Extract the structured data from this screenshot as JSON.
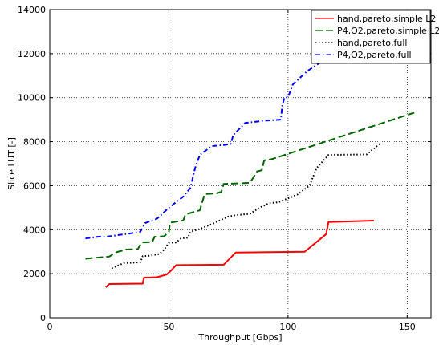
{
  "chart_data": {
    "type": "line",
    "title": "",
    "xlabel": "Throughput [Gbps]",
    "ylabel": "Slice LUT [-]",
    "xlim": [
      0,
      160
    ],
    "ylim": [
      0,
      14000
    ],
    "xticks": [
      0,
      50,
      100,
      150
    ],
    "yticks": [
      0,
      2000,
      4000,
      6000,
      8000,
      10000,
      12000,
      14000
    ],
    "grid": true,
    "legend_position": "top-right",
    "series": [
      {
        "name": "hand,pareto,simple L2",
        "color": "#ff0000",
        "style": "solid",
        "points": [
          [
            23.5,
            1380
          ],
          [
            25,
            1530
          ],
          [
            39,
            1550
          ],
          [
            39.5,
            1820
          ],
          [
            45,
            1840
          ],
          [
            49,
            1960
          ],
          [
            51,
            2150
          ],
          [
            53,
            2390
          ],
          [
            73,
            2410
          ],
          [
            78,
            2960
          ],
          [
            107,
            3000
          ],
          [
            116,
            3800
          ],
          [
            117,
            4350
          ],
          [
            136,
            4410
          ]
        ]
      },
      {
        "name": "P4,O2,pareto,simple L2",
        "color": "#006400",
        "style": "dashed",
        "points": [
          [
            15,
            2680
          ],
          [
            25,
            2780
          ],
          [
            28,
            2980
          ],
          [
            32,
            3100
          ],
          [
            37,
            3120
          ],
          [
            38.5,
            3420
          ],
          [
            43,
            3440
          ],
          [
            44,
            3680
          ],
          [
            48,
            3700
          ],
          [
            50,
            3900
          ],
          [
            50.5,
            4320
          ],
          [
            56,
            4420
          ],
          [
            57,
            4700
          ],
          [
            63,
            4880
          ],
          [
            65,
            5620
          ],
          [
            70,
            5650
          ],
          [
            72,
            5720
          ],
          [
            73,
            6080
          ],
          [
            84,
            6130
          ],
          [
            87,
            6650
          ],
          [
            89,
            6700
          ],
          [
            90,
            7150
          ],
          [
            93,
            7200
          ],
          [
            153,
            9320
          ]
        ]
      },
      {
        "name": "hand,pareto,full",
        "color": "#000000",
        "style": "dotted",
        "points": [
          [
            26,
            2250
          ],
          [
            31,
            2480
          ],
          [
            38,
            2520
          ],
          [
            39,
            2800
          ],
          [
            42,
            2820
          ],
          [
            46,
            2900
          ],
          [
            48,
            3100
          ],
          [
            50,
            3400
          ],
          [
            53,
            3420
          ],
          [
            55,
            3600
          ],
          [
            58,
            3640
          ],
          [
            59,
            3900
          ],
          [
            62,
            4000
          ],
          [
            68,
            4250
          ],
          [
            72,
            4450
          ],
          [
            75,
            4600
          ],
          [
            78,
            4660
          ],
          [
            84,
            4720
          ],
          [
            88,
            5000
          ],
          [
            92,
            5200
          ],
          [
            96,
            5250
          ],
          [
            104,
            5600
          ],
          [
            109,
            6000
          ],
          [
            112,
            6800
          ],
          [
            117,
            7400
          ],
          [
            133,
            7420
          ],
          [
            139,
            7950
          ]
        ]
      },
      {
        "name": "P4,O2,pareto,full",
        "color": "#0000ff",
        "style": "dashdot",
        "points": [
          [
            15,
            3600
          ],
          [
            20,
            3680
          ],
          [
            25,
            3700
          ],
          [
            35,
            3850
          ],
          [
            38,
            3900
          ],
          [
            40,
            4300
          ],
          [
            45,
            4500
          ],
          [
            50,
            5000
          ],
          [
            56,
            5500
          ],
          [
            59,
            5900
          ],
          [
            61,
            6800
          ],
          [
            63,
            7400
          ],
          [
            68,
            7800
          ],
          [
            73,
            7850
          ],
          [
            76,
            7900
          ],
          [
            77,
            8300
          ],
          [
            82,
            8850
          ],
          [
            90,
            8950
          ],
          [
            97,
            9000
          ],
          [
            97.5,
            9600
          ],
          [
            98.5,
            10000
          ],
          [
            100,
            10020
          ],
          [
            102,
            10600
          ],
          [
            108,
            11200
          ],
          [
            115,
            11700
          ],
          [
            120,
            11800
          ]
        ]
      }
    ]
  }
}
